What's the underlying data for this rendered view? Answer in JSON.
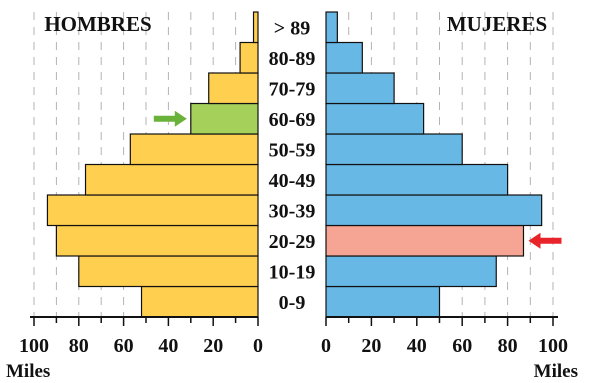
{
  "chart_data": {
    "type": "bar",
    "subtype": "population-pyramid",
    "categories": [
      "0-9",
      "10-19",
      "20-29",
      "30-39",
      "40-49",
      "50-59",
      "60-69",
      "70-79",
      "80-89",
      "> 89"
    ],
    "left_title": "HOMBRES",
    "right_title": "MUJERES",
    "xlabel_left": "Miles",
    "xlabel_right": "Miles",
    "xlim": [
      0,
      100
    ],
    "ticks": [
      "100",
      "80",
      "60",
      "40",
      "20",
      "0"
    ],
    "ticks_right": [
      "0",
      "20",
      "40",
      "60",
      "80",
      "100"
    ],
    "grid": "vertical-dashed",
    "series": [
      {
        "name": "HOMBRES",
        "side": "left",
        "values": [
          52,
          80,
          90,
          94,
          77,
          57,
          30,
          22,
          8,
          2
        ]
      },
      {
        "name": "MUJERES",
        "side": "right",
        "values": [
          50,
          75,
          87,
          95,
          80,
          60,
          43,
          30,
          16,
          5
        ]
      }
    ],
    "colors": {
      "hombres": "#ffcf50",
      "mujeres": "#68b8e6",
      "highlight_hombres": "#a5d15a",
      "highlight_mujeres": "#f6a494",
      "arrow_green": "#6ab23a",
      "arrow_red": "#e8232a",
      "grid": "#b3b3b3",
      "text": "#111111"
    },
    "highlights": [
      {
        "series": "HOMBRES",
        "category": "60-69",
        "marker": "arrow-right",
        "color": "#6ab23a"
      },
      {
        "series": "MUJERES",
        "category": "20-29",
        "marker": "arrow-left",
        "color": "#e8232a"
      }
    ]
  }
}
